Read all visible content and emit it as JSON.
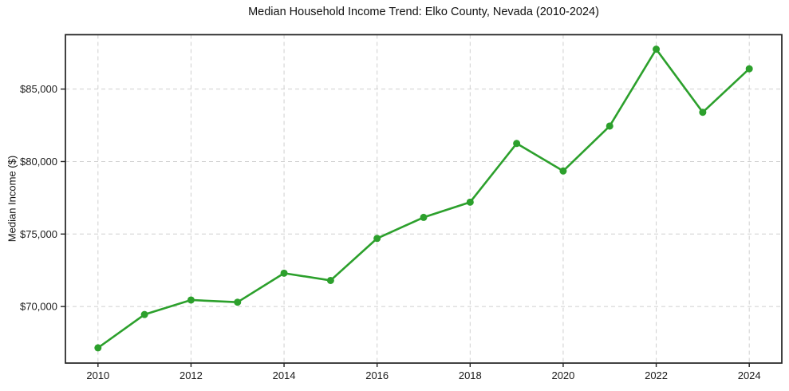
{
  "chart_data": {
    "type": "line",
    "title": "Median Household Income Trend: Elko County, Nevada (2010-2024)",
    "xlabel": "",
    "ylabel": "Median Income ($)",
    "x": [
      2010,
      2011,
      2012,
      2013,
      2014,
      2015,
      2016,
      2017,
      2018,
      2019,
      2020,
      2021,
      2022,
      2023,
      2024
    ],
    "series": [
      {
        "name": "Median Household Income",
        "values": [
          67150,
          69450,
          70450,
          70300,
          72300,
          71800,
          74700,
          76150,
          77200,
          81250,
          79350,
          82450,
          87750,
          83400,
          86400
        ]
      }
    ],
    "xticks": [
      2010,
      2012,
      2014,
      2016,
      2018,
      2020,
      2022,
      2024
    ],
    "xtick_labels": [
      "2010",
      "2012",
      "2014",
      "2016",
      "2018",
      "2020",
      "2022",
      "2024"
    ],
    "yticks": [
      70000,
      75000,
      80000,
      85000
    ],
    "ytick_labels": [
      "$70,000",
      "$75,000",
      "$80,000",
      "$85,000"
    ],
    "xlim": [
      2009.3,
      2024.7
    ],
    "ylim": [
      66100,
      88750
    ],
    "grid": true,
    "grid_style": "dashed",
    "legend": "none",
    "line_color": "#2ca02c",
    "marker": "circle",
    "marker_color": "#2ca02c",
    "grid_color": "#d0d0d0",
    "axis_color": "#222222",
    "background": "#ffffff"
  }
}
